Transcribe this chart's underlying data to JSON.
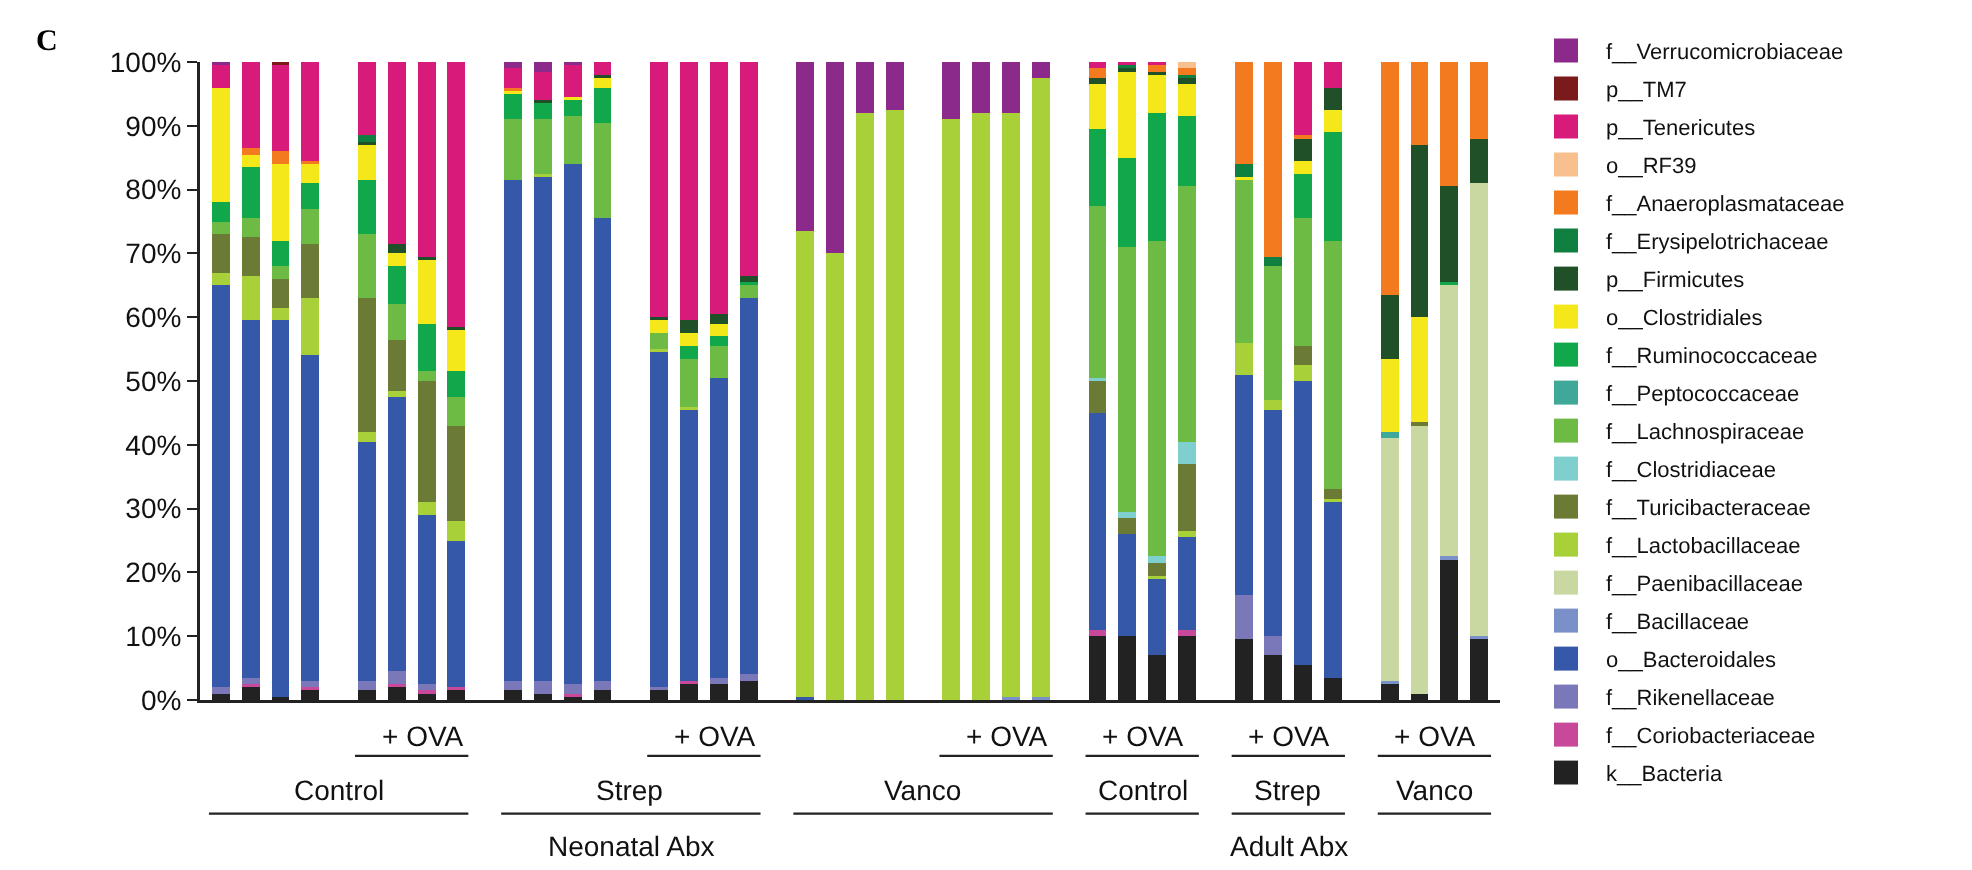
{
  "chart_data": {
    "type": "bar",
    "stacked": true,
    "categories": [
      null,
      null,
      null,
      null,
      null,
      null,
      null,
      null,
      null,
      null,
      null,
      null,
      null,
      null,
      null,
      null,
      null,
      null,
      null,
      null,
      null,
      null,
      null,
      null,
      null,
      null,
      null,
      null,
      null,
      null,
      null,
      null,
      null,
      null,
      null,
      null
    ],
    "ylim": [
      0,
      100
    ],
    "yticks": [
      {
        "value": 0,
        "label": "0%"
      },
      {
        "value": 10,
        "label": "10%"
      },
      {
        "value": 20,
        "label": "20%"
      },
      {
        "value": 30,
        "label": "30%"
      },
      {
        "value": 40,
        "label": "40%"
      },
      {
        "value": 50,
        "label": "50%"
      },
      {
        "value": 60,
        "label": "60%"
      },
      {
        "value": 70,
        "label": "70%"
      },
      {
        "value": 80,
        "label": "80%"
      },
      {
        "value": 90,
        "label": "90%"
      },
      {
        "value": 100,
        "label": "100%"
      }
    ],
    "grid": false,
    "legend": "right",
    "tick_labels": "y",
    "annotations": [
      "C",
      "+ OVA",
      "+ OVA",
      "+ OVA",
      "+ OVA",
      "+ OVA",
      "+ OVA",
      "Control",
      "Strep",
      "Vanco",
      "Control",
      "Strep",
      "Vanco",
      "Neonatal Abx",
      "Adult Abx"
    ],
    "series": [
      {
        "name": "k__Bacteria",
        "color": "#222222",
        "values": [
          1,
          2,
          0.5,
          1.5,
          1.5,
          2,
          1,
          1.5,
          1.5,
          1,
          0.5,
          1.5,
          1.5,
          2.5,
          2.5,
          3,
          0,
          0,
          0,
          0,
          0,
          0,
          0,
          0,
          10,
          10,
          7,
          10,
          9.5,
          7,
          5.5,
          3.5,
          2.5,
          1,
          22,
          9.5
        ]
      },
      {
        "name": "f__Coriobacteriaceae",
        "color": "#c8489a",
        "values": [
          0,
          0.5,
          0,
          0.5,
          0,
          0.5,
          0.5,
          0.5,
          0,
          0,
          0.5,
          0,
          0,
          0.5,
          0,
          0,
          0,
          0,
          0,
          0,
          0,
          0,
          0,
          0,
          1,
          0,
          0,
          1,
          0,
          0,
          0,
          0,
          0,
          0,
          0,
          0
        ]
      },
      {
        "name": "f__Rikenellaceae",
        "color": "#7a78b8",
        "values": [
          1,
          1,
          0,
          1,
          1.5,
          2,
          1,
          0,
          1.5,
          2,
          1.5,
          1.5,
          0.5,
          0,
          1,
          1,
          0,
          0,
          0,
          0,
          0,
          0,
          0,
          0,
          0,
          0,
          0,
          0,
          7,
          3,
          0,
          0,
          0,
          0,
          0,
          0
        ]
      },
      {
        "name": "o__Bacteroidales",
        "color": "#3558a8",
        "values": [
          63,
          56,
          59,
          51,
          37.5,
          43,
          26.5,
          23,
          78.5,
          79,
          81.5,
          72.5,
          52.5,
          42.5,
          47,
          59,
          0.5,
          0,
          0,
          0,
          0,
          0,
          0,
          0,
          34,
          16,
          12,
          14.5,
          34.5,
          35.5,
          44.5,
          27.5,
          0,
          0,
          0,
          0
        ]
      },
      {
        "name": "f__Bacillaceae",
        "color": "#7a90c8",
        "values": [
          0,
          0,
          0,
          0,
          0,
          0,
          0,
          0,
          0,
          0,
          0,
          0,
          0,
          0,
          0,
          0,
          0,
          0,
          0,
          0,
          0,
          0,
          0.5,
          0.5,
          0,
          0,
          0,
          0,
          0,
          0,
          0,
          0,
          0.5,
          0,
          0.5,
          0.5
        ]
      },
      {
        "name": "f__Paenibacillaceae",
        "color": "#c8d8a0",
        "values": [
          0,
          0,
          0,
          0,
          0,
          0,
          0,
          0,
          0,
          0,
          0,
          0,
          0,
          0,
          0,
          0,
          0,
          0,
          0,
          0,
          0,
          0,
          0,
          0,
          0,
          0,
          0,
          0,
          0,
          0,
          0,
          0,
          38,
          42,
          42.5,
          71
        ]
      },
      {
        "name": "f__Lactobacillaceae",
        "color": "#a8d038",
        "values": [
          2,
          7,
          2,
          9,
          1.5,
          1,
          2,
          3,
          0,
          0.5,
          0,
          0,
          0.5,
          0.5,
          0,
          0,
          73,
          70,
          92,
          92.5,
          91,
          92,
          91.5,
          97,
          0,
          0,
          0.5,
          1,
          5,
          1.5,
          2.5,
          0.5,
          0,
          0,
          0,
          0
        ]
      },
      {
        "name": "f__Turicibacteraceae",
        "color": "#6b7b35",
        "values": [
          6,
          6,
          4.5,
          8.5,
          21,
          8,
          19,
          15,
          0,
          0,
          0,
          0,
          0,
          0,
          0,
          0,
          0,
          0,
          0,
          0,
          0,
          0,
          0,
          0,
          5,
          2.5,
          2,
          10.5,
          0,
          0,
          3,
          1.5,
          0,
          0.5,
          0,
          0
        ]
      },
      {
        "name": "f__Clostridiaceae",
        "color": "#7fcfcf",
        "values": [
          0,
          0,
          0,
          0,
          0,
          0,
          0,
          0,
          0,
          0,
          0,
          0,
          0,
          0,
          0,
          0,
          0,
          0,
          0,
          0,
          0,
          0,
          0,
          0,
          0.5,
          1,
          1,
          3.5,
          0,
          0,
          0,
          0,
          0,
          0,
          0,
          0
        ]
      },
      {
        "name": "f__Lachnospiraceae",
        "color": "#6dbb45",
        "values": [
          2,
          3,
          2,
          5.5,
          10,
          5.5,
          1.5,
          4.5,
          9.5,
          8.5,
          7.5,
          15,
          2.5,
          7.5,
          5,
          2,
          0,
          0,
          0,
          0,
          0,
          0,
          0,
          0,
          27,
          41.5,
          49.5,
          40,
          25.5,
          21,
          20,
          39,
          0,
          0,
          0,
          0
        ]
      },
      {
        "name": "f__Peptococcaceae",
        "color": "#40a898",
        "values": [
          0,
          0,
          0,
          0,
          0,
          0,
          0,
          0,
          0,
          0,
          0,
          0,
          0,
          0,
          0,
          0,
          0,
          0,
          0,
          0,
          0,
          0,
          0,
          0,
          0,
          0,
          0,
          0,
          0,
          0,
          0,
          0,
          1,
          0,
          0,
          0
        ]
      },
      {
        "name": "f__Ruminococcaceae",
        "color": "#10a84a",
        "values": [
          3,
          8,
          4,
          4,
          8.5,
          6,
          7.5,
          4,
          4,
          2.5,
          2.5,
          5.5,
          0,
          2,
          1.5,
          0.5,
          0,
          0,
          0,
          0,
          0,
          0,
          0,
          0,
          12,
          14,
          20,
          11,
          0,
          0,
          7,
          17,
          0,
          0,
          0.5,
          0
        ]
      },
      {
        "name": "o__Clostridiales",
        "color": "#f5e81a",
        "values": [
          18,
          2,
          12,
          3,
          5.5,
          2,
          10,
          6.5,
          0.5,
          0,
          0.5,
          1.5,
          2,
          2,
          2,
          0,
          0,
          0,
          0,
          0,
          0,
          0,
          0,
          0,
          7,
          13.5,
          6,
          5,
          0.5,
          0,
          2,
          3.5,
          11.5,
          16.5,
          0,
          0
        ]
      },
      {
        "name": "p__Firmicutes",
        "color": "#1f5028",
        "values": [
          0,
          0,
          0,
          0,
          0.5,
          1.5,
          0.5,
          0.5,
          0,
          0.5,
          0,
          0.5,
          0.5,
          2,
          1.5,
          1,
          0,
          0,
          0,
          0,
          0,
          0,
          0,
          0,
          1,
          0.5,
          0.5,
          1,
          0,
          0,
          3.5,
          3.5,
          10,
          27,
          15,
          7
        ]
      },
      {
        "name": "f__Erysipelotrichaceae",
        "color": "#0f8040",
        "values": [
          0,
          0,
          0,
          0,
          1,
          0,
          0,
          0,
          0,
          0,
          0,
          0,
          0,
          0,
          0,
          0,
          0,
          0,
          0,
          0,
          0,
          0,
          0,
          0,
          0,
          0.5,
          0,
          0.5,
          2,
          1.5,
          0,
          0,
          0,
          0,
          0,
          0
        ]
      },
      {
        "name": "f__Anaeroplasmataceae",
        "color": "#f47a20",
        "values": [
          0,
          1,
          2,
          0.5,
          0,
          0,
          0,
          0,
          0.5,
          0,
          0,
          0,
          0,
          0,
          0,
          0,
          0,
          0,
          0,
          0,
          0,
          0,
          0,
          0,
          1.5,
          0,
          1,
          1,
          16,
          30.5,
          0.5,
          0,
          36.5,
          13,
          19.5,
          12
        ]
      },
      {
        "name": "o__RF39",
        "color": "#f9c08f",
        "values": [
          0,
          0,
          0,
          0,
          0,
          0,
          0,
          0,
          0,
          0,
          0,
          0,
          0,
          0,
          0,
          0,
          0,
          0,
          0,
          0,
          0,
          0,
          0,
          0,
          0,
          0,
          0,
          1,
          0,
          0,
          0,
          0,
          0,
          0,
          0,
          0
        ]
      },
      {
        "name": "p__Tenericutes",
        "color": "#d81b7a",
        "values": [
          3.5,
          13.5,
          13.5,
          15.5,
          11.5,
          28.5,
          30.5,
          41.5,
          3,
          4.5,
          5,
          2,
          40,
          40.5,
          39.5,
          33.5,
          0,
          0,
          0,
          0,
          0,
          0,
          0,
          0,
          1,
          0.5,
          0.5,
          0,
          0,
          0,
          11.5,
          4,
          0,
          0,
          0,
          0
        ]
      },
      {
        "name": "p__TM7",
        "color": "#7a1a1a",
        "values": [
          0,
          0,
          0.5,
          0,
          0,
          0,
          0,
          0,
          0,
          0,
          0,
          0,
          0,
          0,
          0,
          0,
          0,
          0,
          0,
          0,
          0,
          0,
          0,
          0,
          0,
          0,
          0,
          0,
          0,
          0,
          0,
          0,
          0,
          0,
          0,
          0
        ]
      },
      {
        "name": "f__Verrucomicrobiaceae",
        "color": "#8b2a8b",
        "values": [
          0.5,
          0,
          0,
          0,
          0,
          0,
          0,
          0,
          1,
          1.5,
          0.5,
          0,
          0,
          0,
          0,
          0,
          26.5,
          30,
          8,
          7.5,
          9,
          8,
          8,
          2.5,
          0,
          0,
          0,
          0,
          0,
          0,
          0,
          0,
          0,
          0,
          0,
          0
        ]
      }
    ]
  }
}
